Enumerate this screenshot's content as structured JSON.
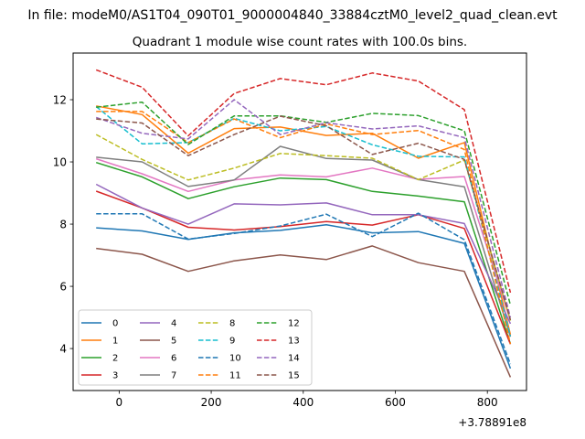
{
  "suptitle": "In file: modeM0/AS1T04_090T01_9000004840_33884cztM0_level2_quad_clean.evt",
  "chart_data": {
    "type": "line",
    "title": "Quadrant 1 module wise count rates with 100.0s bins.",
    "xlabel": "",
    "ylabel": "",
    "x_offset_label": "+3.78891e8",
    "x": [
      -50,
      50,
      150,
      250,
      350,
      450,
      550,
      650,
      750,
      850
    ],
    "xlim": [
      -100,
      885
    ],
    "ylim": [
      2.65,
      13.5
    ],
    "xticks": [
      0,
      200,
      400,
      600,
      800
    ],
    "yticks": [
      4,
      6,
      8,
      10,
      12
    ],
    "grid": false,
    "legend_position": "lower-left",
    "legend_columns": 4,
    "series": [
      {
        "name": "0",
        "color": "#1f77b4",
        "style": "solid",
        "values": [
          7.88,
          7.78,
          7.51,
          7.72,
          7.8,
          7.98,
          7.72,
          7.76,
          7.38,
          3.36
        ]
      },
      {
        "name": "1",
        "color": "#ff7f0e",
        "style": "solid",
        "values": [
          11.8,
          11.52,
          10.28,
          11.07,
          11.12,
          10.85,
          10.92,
          10.12,
          10.62,
          4.45
        ]
      },
      {
        "name": "2",
        "color": "#2ca02c",
        "style": "solid",
        "values": [
          9.98,
          9.52,
          8.82,
          9.2,
          9.48,
          9.43,
          9.05,
          8.9,
          8.72,
          4.15
        ]
      },
      {
        "name": "3",
        "color": "#d62728",
        "style": "solid",
        "values": [
          9.06,
          8.52,
          7.9,
          7.81,
          7.92,
          8.08,
          7.97,
          8.3,
          7.86,
          4.14
        ]
      },
      {
        "name": "4",
        "color": "#9467bd",
        "style": "solid",
        "values": [
          9.28,
          8.52,
          8.0,
          8.65,
          8.62,
          8.68,
          8.3,
          8.3,
          8.02,
          4.8
        ]
      },
      {
        "name": "5",
        "color": "#8c564b",
        "style": "solid",
        "values": [
          7.22,
          7.03,
          6.48,
          6.82,
          7.01,
          6.86,
          7.3,
          6.76,
          6.48,
          3.08
        ]
      },
      {
        "name": "6",
        "color": "#e377c2",
        "style": "solid",
        "values": [
          10.1,
          9.62,
          9.05,
          9.42,
          9.58,
          9.52,
          9.8,
          9.44,
          9.53,
          4.9
        ]
      },
      {
        "name": "7",
        "color": "#7f7f7f",
        "style": "solid",
        "values": [
          10.15,
          10.0,
          9.21,
          9.42,
          10.5,
          10.11,
          10.06,
          9.43,
          9.2,
          4.38
        ]
      },
      {
        "name": "8",
        "color": "#bcbd22",
        "style": "dashed",
        "values": [
          10.88,
          10.08,
          9.42,
          9.8,
          10.27,
          10.2,
          10.12,
          9.43,
          10.06,
          4.9
        ]
      },
      {
        "name": "9",
        "color": "#17becf",
        "style": "dashed",
        "values": [
          11.78,
          10.58,
          10.62,
          11.4,
          11.0,
          11.14,
          10.55,
          10.18,
          10.16,
          4.4
        ]
      },
      {
        "name": "10",
        "color": "#1f77b4",
        "style": "dashed",
        "values": [
          8.33,
          8.33,
          7.52,
          7.7,
          7.94,
          8.32,
          7.6,
          8.35,
          7.5,
          3.5
        ]
      },
      {
        "name": "11",
        "color": "#ff7f0e",
        "style": "dashed",
        "values": [
          11.62,
          11.62,
          10.62,
          11.38,
          10.78,
          11.22,
          10.88,
          11.01,
          10.4,
          4.15
        ]
      },
      {
        "name": "12",
        "color": "#2ca02c",
        "style": "dashed",
        "values": [
          11.76,
          11.92,
          10.56,
          11.48,
          11.48,
          11.27,
          11.56,
          11.49,
          11.0,
          5.4
        ]
      },
      {
        "name": "13",
        "color": "#d62728",
        "style": "dashed",
        "values": [
          12.96,
          12.4,
          10.84,
          12.2,
          12.68,
          12.48,
          12.86,
          12.6,
          11.68,
          5.8
        ]
      },
      {
        "name": "14",
        "color": "#9467bd",
        "style": "dashed",
        "values": [
          11.43,
          10.92,
          10.74,
          12.0,
          10.88,
          11.26,
          11.06,
          11.16,
          10.78,
          5.0
        ]
      },
      {
        "name": "15",
        "color": "#8c564b",
        "style": "dashed",
        "values": [
          11.38,
          11.25,
          10.2,
          10.88,
          11.47,
          11.16,
          10.24,
          10.6,
          10.08,
          4.92
        ]
      }
    ]
  }
}
